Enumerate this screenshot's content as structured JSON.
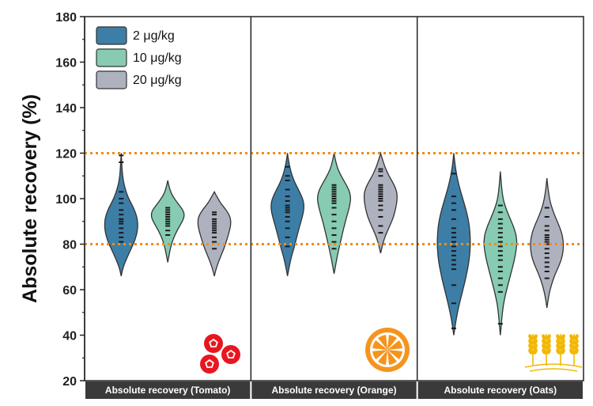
{
  "chart_data": {
    "type": "violin",
    "ylabel": "Absolute recovery (%)",
    "ylim": [
      20,
      180
    ],
    "yticks": [
      20,
      40,
      60,
      80,
      100,
      120,
      140,
      160,
      180
    ],
    "reference_lines": [
      80,
      120
    ],
    "legend": {
      "placement": "top-left",
      "entries": [
        {
          "name": "2 μg/kg",
          "color": "#3d7ea6"
        },
        {
          "name": "10 μg/kg",
          "color": "#86cbb2"
        },
        {
          "name": "20 μg/kg",
          "color": "#aeb2bf"
        }
      ]
    },
    "panels": [
      {
        "label": "Absolute recovery (Tomato)",
        "icon": "tomato-icon",
        "groups": [
          {
            "series": "2 μg/kg",
            "min": 66,
            "max": 120,
            "density": [
              [
                66,
                0
              ],
              [
                70,
                0.12
              ],
              [
                74,
                0.35
              ],
              [
                78,
                0.6
              ],
              [
                82,
                0.85
              ],
              [
                86,
                0.98
              ],
              [
                89,
                1
              ],
              [
                92,
                0.95
              ],
              [
                96,
                0.75
              ],
              [
                100,
                0.45
              ],
              [
                104,
                0.25
              ],
              [
                108,
                0.12
              ],
              [
                112,
                0.06
              ],
              [
                116,
                0.03
              ],
              [
                120,
                0
              ]
            ],
            "points": [
              81,
              83,
              85,
              87,
              89,
              90,
              91,
              93,
              95,
              98,
              100,
              103,
              116,
              119
            ]
          },
          {
            "series": "10 μg/kg",
            "min": 72,
            "max": 108,
            "density": [
              [
                72,
                0
              ],
              [
                76,
                0.1
              ],
              [
                80,
                0.22
              ],
              [
                84,
                0.42
              ],
              [
                88,
                0.72
              ],
              [
                91,
                0.95
              ],
              [
                93,
                1
              ],
              [
                95,
                0.92
              ],
              [
                98,
                0.6
              ],
              [
                101,
                0.3
              ],
              [
                104,
                0.12
              ],
              [
                108,
                0
              ]
            ],
            "points": [
              84,
              86,
              88,
              89,
              90,
              91,
              92,
              93,
              94,
              95,
              96
            ]
          },
          {
            "series": "20 μg/kg",
            "min": 66,
            "max": 103,
            "density": [
              [
                66,
                0
              ],
              [
                70,
                0.14
              ],
              [
                74,
                0.35
              ],
              [
                78,
                0.58
              ],
              [
                82,
                0.76
              ],
              [
                86,
                0.92
              ],
              [
                89,
                1
              ],
              [
                92,
                0.96
              ],
              [
                95,
                0.72
              ],
              [
                98,
                0.38
              ],
              [
                101,
                0.15
              ],
              [
                103,
                0
              ]
            ],
            "points": [
              78,
              81,
              83,
              85,
              86,
              87,
              88,
              89,
              90,
              91,
              93,
              94
            ]
          }
        ]
      },
      {
        "label": "Absolute recovery (Orange)",
        "icon": "orange-icon",
        "groups": [
          {
            "series": "2 μg/kg",
            "min": 66,
            "max": 120,
            "density": [
              [
                66,
                0
              ],
              [
                70,
                0.1
              ],
              [
                74,
                0.22
              ],
              [
                78,
                0.38
              ],
              [
                82,
                0.52
              ],
              [
                86,
                0.66
              ],
              [
                90,
                0.82
              ],
              [
                94,
                0.96
              ],
              [
                97,
                1
              ],
              [
                100,
                0.92
              ],
              [
                104,
                0.66
              ],
              [
                108,
                0.38
              ],
              [
                112,
                0.2
              ],
              [
                116,
                0.08
              ],
              [
                120,
                0
              ]
            ],
            "points": [
              79,
              83,
              87,
              90,
              92,
              94,
              95,
              96,
              97,
              99,
              101,
              104,
              108,
              110,
              114
            ]
          },
          {
            "series": "10 μg/kg",
            "min": 67,
            "max": 120,
            "density": [
              [
                67,
                0
              ],
              [
                71,
                0.1
              ],
              [
                75,
                0.2
              ],
              [
                79,
                0.32
              ],
              [
                83,
                0.45
              ],
              [
                87,
                0.58
              ],
              [
                91,
                0.72
              ],
              [
                95,
                0.88
              ],
              [
                99,
                1
              ],
              [
                102,
                0.98
              ],
              [
                105,
                0.82
              ],
              [
                109,
                0.5
              ],
              [
                113,
                0.22
              ],
              [
                117,
                0.08
              ],
              [
                120,
                0
              ]
            ],
            "points": [
              78,
              81,
              84,
              87,
              90,
              93,
              96,
              98,
              99,
              100,
              101,
              102,
              103,
              104,
              105,
              106
            ]
          },
          {
            "series": "20 μg/kg",
            "min": 76,
            "max": 120,
            "density": [
              [
                76,
                0
              ],
              [
                80,
                0.12
              ],
              [
                84,
                0.3
              ],
              [
                88,
                0.55
              ],
              [
                92,
                0.78
              ],
              [
                96,
                0.92
              ],
              [
                100,
                1
              ],
              [
                103,
                0.98
              ],
              [
                106,
                0.82
              ],
              [
                110,
                0.5
              ],
              [
                114,
                0.25
              ],
              [
                118,
                0.08
              ],
              [
                120,
                0
              ]
            ],
            "points": [
              85,
              88,
              92,
              95,
              97,
              99,
              100,
              101,
              102,
              103,
              104,
              105,
              106,
              110,
              112,
              113
            ]
          }
        ]
      },
      {
        "label": "Absolute recovery (Oats)",
        "icon": "oats-icon",
        "groups": [
          {
            "series": "2 μg/kg",
            "min": 40,
            "max": 120,
            "density": [
              [
                40,
                0
              ],
              [
                45,
                0.1
              ],
              [
                50,
                0.22
              ],
              [
                55,
                0.38
              ],
              [
                60,
                0.55
              ],
              [
                65,
                0.72
              ],
              [
                70,
                0.86
              ],
              [
                75,
                0.96
              ],
              [
                80,
                1
              ],
              [
                85,
                0.98
              ],
              [
                90,
                0.9
              ],
              [
                95,
                0.74
              ],
              [
                100,
                0.54
              ],
              [
                105,
                0.34
              ],
              [
                110,
                0.18
              ],
              [
                115,
                0.07
              ],
              [
                120,
                0
              ]
            ],
            "points": [
              43,
              54,
              62,
              69,
              71,
              73,
              75,
              77,
              79,
              81,
              83,
              85,
              87,
              91,
              95,
              98,
              101,
              111
            ]
          },
          {
            "series": "10 μg/kg",
            "min": 40,
            "max": 112,
            "density": [
              [
                40,
                0
              ],
              [
                45,
                0.06
              ],
              [
                50,
                0.12
              ],
              [
                55,
                0.22
              ],
              [
                60,
                0.38
              ],
              [
                65,
                0.56
              ],
              [
                70,
                0.74
              ],
              [
                75,
                0.9
              ],
              [
                80,
                1
              ],
              [
                84,
                0.96
              ],
              [
                88,
                0.78
              ],
              [
                92,
                0.54
              ],
              [
                96,
                0.32
              ],
              [
                100,
                0.16
              ],
              [
                106,
                0.06
              ],
              [
                112,
                0
              ]
            ],
            "points": [
              45,
              59,
              62,
              65,
              68,
              70,
              73,
              75,
              77,
              79,
              81,
              83,
              85,
              87,
              89,
              91,
              94,
              97
            ]
          },
          {
            "series": "20 μg/kg",
            "min": 52,
            "max": 109,
            "density": [
              [
                52,
                0
              ],
              [
                57,
                0.1
              ],
              [
                62,
                0.26
              ],
              [
                67,
                0.5
              ],
              [
                71,
                0.76
              ],
              [
                75,
                0.94
              ],
              [
                79,
                1
              ],
              [
                83,
                0.96
              ],
              [
                87,
                0.8
              ],
              [
                91,
                0.56
              ],
              [
                95,
                0.34
              ],
              [
                99,
                0.18
              ],
              [
                104,
                0.07
              ],
              [
                109,
                0
              ]
            ],
            "points": [
              65,
              68,
              70,
              72,
              74,
              76,
              78,
              80,
              81,
              82,
              83,
              84,
              86,
              88,
              92,
              96
            ]
          }
        ]
      }
    ]
  }
}
